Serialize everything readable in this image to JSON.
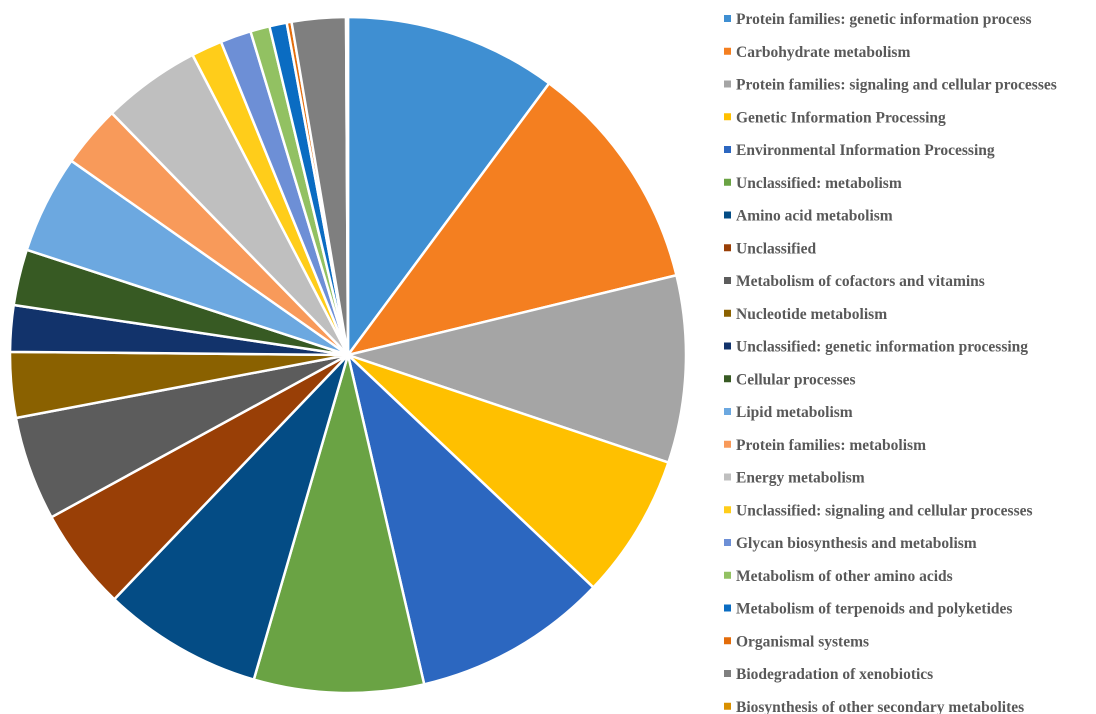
{
  "chart_data": {
    "type": "pie",
    "legend_position": "right",
    "slices": [
      {
        "label": "Protein families: genetic information process",
        "value": 11.0,
        "color": "#3F8FD2"
      },
      {
        "label": "Carbohydrate metabolism",
        "value": 12.0,
        "color": "#F47F20"
      },
      {
        "label": "Protein families: signaling and cellular processes",
        "value": 9.7,
        "color": "#A5A5A5"
      },
      {
        "label": "Genetic Information Processing",
        "value": 7.5,
        "color": "#FFC000"
      },
      {
        "label": "Environmental Information Processing",
        "value": 10.1,
        "color": "#2C67C0"
      },
      {
        "label": "Unclassified: metabolism",
        "value": 8.8,
        "color": "#6AA344"
      },
      {
        "label": "Amino acid metabolism",
        "value": 8.3,
        "color": "#044C85"
      },
      {
        "label": "Unclassified",
        "value": 5.3,
        "color": "#993F06"
      },
      {
        "label": "Metabolism of cofactors and vitamins",
        "value": 5.4,
        "color": "#5C5C5C"
      },
      {
        "label": "Nucleotide metabolism",
        "value": 3.4,
        "color": "#8A6100"
      },
      {
        "label": "Unclassified: genetic information processing",
        "value": 2.4,
        "color": "#12336B"
      },
      {
        "label": "Cellular processes",
        "value": 2.9,
        "color": "#375A23"
      },
      {
        "label": "Lipid metabolism",
        "value": 5.1,
        "color": "#6CA8E0"
      },
      {
        "label": "Protein families: metabolism",
        "value": 3.2,
        "color": "#F89A5A"
      },
      {
        "label": "Energy metabolism",
        "value": 5.1,
        "color": "#BFBFBF"
      },
      {
        "label": "Unclassified: signaling and cellular processes",
        "value": 1.6,
        "color": "#FFCD1A"
      },
      {
        "label": "Glycan biosynthesis and metabolism",
        "value": 1.6,
        "color": "#6D8FD6"
      },
      {
        "label": "Metabolism of other amino acids",
        "value": 1.0,
        "color": "#92C162"
      },
      {
        "label": "Metabolism of terpenoids and polyketides",
        "value": 0.9,
        "color": "#0A6CC2"
      },
      {
        "label": "Organismal systems",
        "value": 0.25,
        "color": "#E36C0A"
      },
      {
        "label": "Biodegradation of xenobiotics",
        "value": 2.8,
        "color": "#7F7F7F"
      },
      {
        "label": "Biosynthesis of other secondary metabolites",
        "value": 0.1,
        "color": "#D99000"
      }
    ]
  }
}
